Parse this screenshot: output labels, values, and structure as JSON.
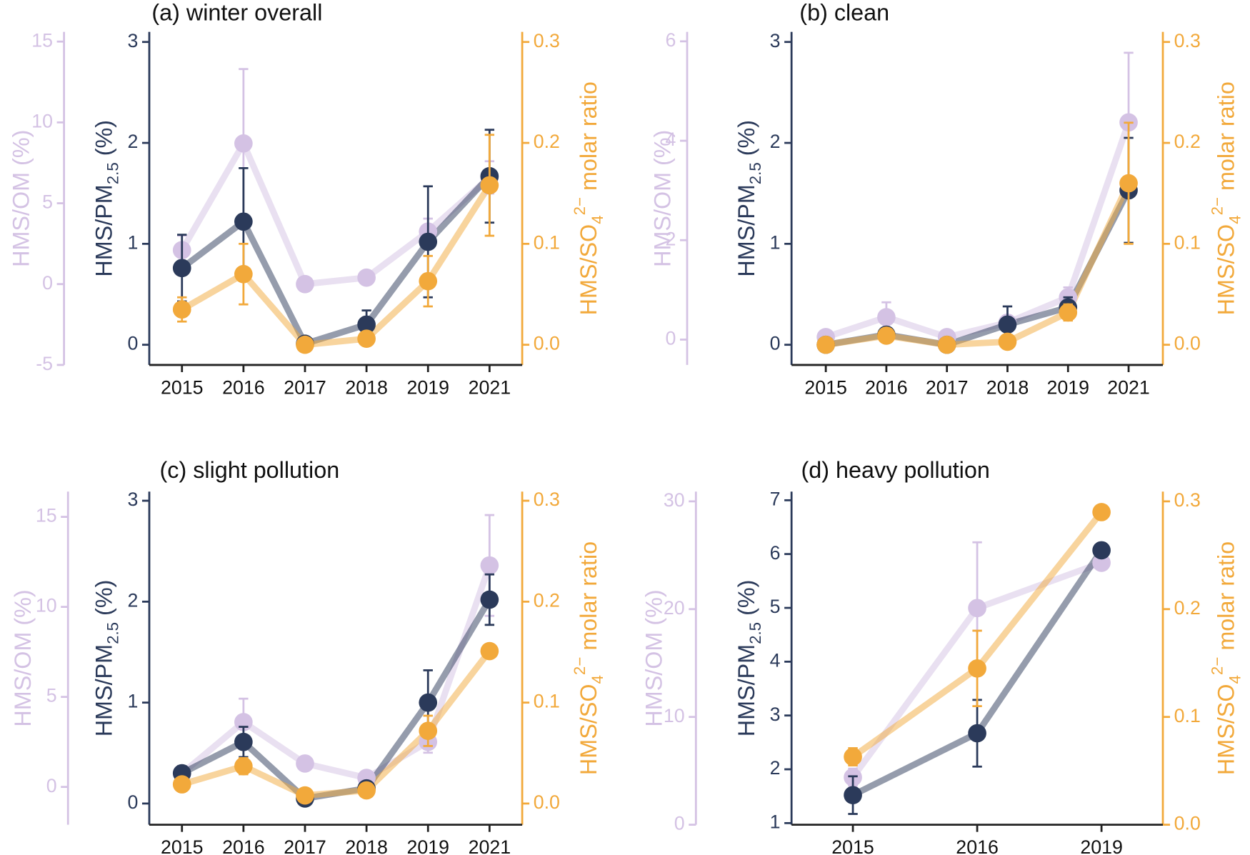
{
  "chart_data": [
    {
      "type": "line",
      "title": "(a) winter overall",
      "categories": [
        "2015",
        "2016",
        "2017",
        "2018",
        "2019",
        "2021"
      ],
      "y_label": [
        {
          "text": "HMS/PM"
        },
        {
          "text": "2.5",
          "sub": true
        },
        {
          "text": " (%)"
        }
      ],
      "y2_label": [
        {
          "text": "HMS/SO"
        },
        {
          "text": "4",
          "sub": true
        },
        {
          "text": "2−",
          "sup": true
        },
        {
          "text": " molar ratio"
        }
      ],
      "y3_label": [
        {
          "text": "HMS/OM (%)"
        }
      ],
      "ylim": [
        -0.2,
        3.1
      ],
      "yticks": [
        0,
        1,
        2,
        3
      ],
      "y2lim": [
        -0.02,
        0.31
      ],
      "y2ticks": [
        {
          "value": 0,
          "label": "0.0"
        },
        0.1,
        0.2,
        0.3
      ],
      "y3lim": [
        -5,
        15.6
      ],
      "y3ticks": [
        -5,
        0,
        5,
        10,
        15
      ],
      "series": [
        {
          "axis": "y3",
          "color": "#d4c2e4",
          "values": [
            2.1,
            8.7,
            0.0,
            0.4,
            3.25,
            6.6
          ],
          "errors": [
            0.9,
            4.6,
            null,
            null,
            0.8,
            1.0
          ]
        },
        {
          "axis": "y",
          "color": "#2b3a5a",
          "values": [
            0.76,
            1.22,
            0.01,
            0.2,
            1.02,
            1.67
          ],
          "errors": [
            0.33,
            0.53,
            0.01,
            0.14,
            0.55,
            0.46
          ]
        },
        {
          "axis": "y2",
          "color": "#f2a93b",
          "values": [
            0.035,
            0.07,
            0.0,
            0.006,
            0.063,
            0.158
          ],
          "errors": [
            0.012,
            0.03,
            0.002,
            0.004,
            0.025,
            0.05
          ]
        }
      ]
    },
    {
      "type": "line",
      "title": "(b) clean",
      "categories": [
        "2015",
        "2016",
        "2017",
        "2018",
        "2019",
        "2021"
      ],
      "y_label": [
        {
          "text": "HMS/PM"
        },
        {
          "text": "2.5",
          "sub": true
        },
        {
          "text": " (%)"
        }
      ],
      "y2_label": [
        {
          "text": "HMS/SO"
        },
        {
          "text": "4",
          "sub": true
        },
        {
          "text": "2−",
          "sup": true
        },
        {
          "text": " molar ratio"
        }
      ],
      "y3_label": [
        {
          "text": "HMS/OM (%)"
        }
      ],
      "ylim": [
        -0.2,
        3.1
      ],
      "yticks": [
        0,
        1,
        2,
        3
      ],
      "y2lim": [
        -0.02,
        0.31
      ],
      "y2ticks": [
        {
          "value": 0,
          "label": "0.0"
        },
        0.1,
        0.2,
        0.3
      ],
      "y3lim": [
        -0.51,
        6.19
      ],
      "y3ticks": [
        0,
        2,
        4,
        6
      ],
      "series": [
        {
          "axis": "y3",
          "color": "#d4c2e4",
          "values": [
            0.05,
            0.45,
            0.05,
            0.34,
            0.85,
            4.37
          ],
          "errors": [
            null,
            0.3,
            null,
            0.1,
            0.2,
            1.4
          ]
        },
        {
          "axis": "y",
          "color": "#2b3a5a",
          "values": [
            0.0,
            0.1,
            0.0,
            0.2,
            0.37,
            1.53
          ],
          "errors": [
            0.01,
            0.03,
            0.01,
            0.18,
            0.1,
            0.52
          ]
        },
        {
          "axis": "y2",
          "color": "#f2a93b",
          "values": [
            0.0,
            0.009,
            0.0,
            0.003,
            0.032,
            0.16
          ],
          "errors": [
            0.002,
            0.003,
            0.002,
            0.002,
            0.008,
            0.06
          ]
        }
      ]
    },
    {
      "type": "line",
      "title": "(c) slight pollution",
      "categories": [
        "2015",
        "2016",
        "2017",
        "2018",
        "2019",
        "2021"
      ],
      "y_label": [
        {
          "text": "HMS/PM"
        },
        {
          "text": "2.5",
          "sub": true
        },
        {
          "text": " (%)"
        }
      ],
      "y2_label": [
        {
          "text": "HMS/SO"
        },
        {
          "text": "4",
          "sub": true
        },
        {
          "text": "2−",
          "sup": true
        },
        {
          "text": " molar ratio"
        }
      ],
      "y3_label": [
        {
          "text": "HMS/OM (%)"
        }
      ],
      "ylim": [
        -0.21,
        3.09
      ],
      "yticks": [
        0,
        1,
        2,
        3
      ],
      "y2lim": [
        -0.021,
        0.309
      ],
      "y2ticks": [
        {
          "value": 0,
          "label": "0.0"
        },
        0.1,
        0.2,
        0.3
      ],
      "y3lim": [
        -2.1,
        16.4
      ],
      "y3ticks": [
        0,
        5,
        10,
        15
      ],
      "series": [
        {
          "axis": "y3",
          "color": "#d4c2e4",
          "values": [
            0.75,
            3.6,
            1.3,
            0.5,
            2.5,
            12.3
          ],
          "errors": [
            null,
            1.3,
            null,
            null,
            0.6,
            2.8
          ]
        },
        {
          "axis": "y",
          "color": "#2b3a5a",
          "values": [
            0.3,
            0.61,
            0.05,
            0.15,
            1.0,
            2.02
          ],
          "errors": [
            0.07,
            0.15,
            0.02,
            0.03,
            0.32,
            0.25
          ]
        },
        {
          "axis": "y2",
          "color": "#f2a93b",
          "values": [
            0.019,
            0.037,
            0.008,
            0.013,
            0.072,
            0.151
          ],
          "errors": [
            0.003,
            0.008,
            0.003,
            0.004,
            0.015,
            0.004
          ]
        }
      ]
    },
    {
      "type": "line",
      "title": "(d) heavy pollution",
      "categories": [
        "2015",
        "2016",
        "2019"
      ],
      "y_label": [
        {
          "text": "HMS/PM"
        },
        {
          "text": "2.5",
          "sub": true
        },
        {
          "text": " (%)"
        }
      ],
      "y2_label": [
        {
          "text": "HMS/SO"
        },
        {
          "text": "4",
          "sub": true
        },
        {
          "text": "2−",
          "sup": true
        },
        {
          "text": " molar ratio"
        }
      ],
      "y3_label": [
        {
          "text": "HMS/OM (%)"
        }
      ],
      "ylim": [
        0.97,
        7.16
      ],
      "yticks": [
        1,
        2,
        3,
        4,
        5,
        6,
        7
      ],
      "y2lim": [
        0,
        0.309
      ],
      "y2ticks": [
        {
          "value": 0,
          "label": "0.0"
        },
        0.1,
        0.2,
        0.3
      ],
      "y3lim": [
        0,
        30.9
      ],
      "y3ticks": [
        0,
        10,
        20,
        30
      ],
      "series": [
        {
          "axis": "y3",
          "color": "#d4c2e4",
          "values": [
            4.4,
            20.1,
            24.3
          ],
          "errors": [
            0.8,
            6.1,
            0.6
          ]
        },
        {
          "axis": "y",
          "color": "#2b3a5a",
          "values": [
            1.52,
            2.67,
            6.07
          ],
          "errors": [
            0.35,
            0.62,
            0.1
          ]
        },
        {
          "axis": "y2",
          "color": "#f2a93b",
          "values": [
            0.063,
            0.145,
            0.29
          ],
          "errors": [
            0.008,
            0.035,
            0.003
          ]
        }
      ]
    }
  ]
}
